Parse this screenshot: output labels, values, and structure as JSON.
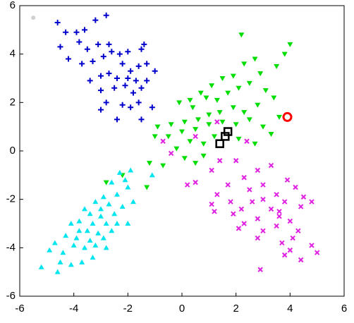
{
  "chart_data": {
    "type": "scatter",
    "xlim": [
      -6,
      6
    ],
    "ylim": [
      -6,
      6
    ],
    "xticks": [
      -6,
      -4,
      -2,
      0,
      2,
      4,
      6
    ],
    "yticks": [
      -6,
      -4,
      -2,
      0,
      2,
      4,
      6
    ],
    "series": [
      {
        "color": "#0000cc",
        "marker": "plus",
        "x": [
          -4.6,
          -4.3,
          -3.9,
          -3.6,
          -3.2,
          -2.8,
          -3.8,
          -3.5,
          -3.1,
          -2.7,
          -2.6,
          -2.9,
          -3.3,
          -3.7,
          -4.2,
          -4.5,
          -2.3,
          -2.0,
          -1.5,
          -1.3,
          -1.6,
          -1.9,
          -2.2,
          -2.4,
          -2.7,
          -3.0,
          -3.4,
          -2.5,
          -2.1,
          -1.8,
          -1.5,
          -1.3,
          -1.6,
          -1.9,
          -2.2,
          -2.8,
          -3.0,
          -2.4,
          -1.5,
          -1.1,
          -1.0,
          -3.0,
          -2.0,
          -1.7,
          -1.4
        ],
        "y": [
          5.3,
          4.9,
          4.9,
          5.0,
          5.4,
          5.6,
          4.5,
          4.2,
          4.4,
          4.4,
          4.1,
          3.9,
          3.7,
          3.6,
          3.8,
          4.3,
          4.0,
          4.1,
          4.2,
          3.6,
          3.5,
          3.3,
          3.6,
          3.0,
          3.2,
          3.1,
          2.9,
          2.6,
          2.7,
          2.4,
          2.6,
          2.9,
          2.0,
          1.8,
          1.9,
          2.0,
          1.7,
          1.3,
          1.3,
          1.8,
          3.3,
          2.5,
          3.0,
          2.9,
          4.4
        ]
      },
      {
        "color": "#00dd00",
        "marker": "tri-down",
        "x": [
          2.2,
          4.0,
          3.8,
          2.7,
          2.3,
          1.9,
          2.9,
          3.5,
          1.5,
          1.1,
          0.7,
          0.3,
          -0.1,
          0.4,
          0.9,
          1.3,
          1.7,
          2.1,
          2.5,
          3.1,
          3.4,
          2.8,
          2.3,
          1.9,
          1.4,
          1.0,
          0.6,
          0.1,
          -0.4,
          -0.9,
          -1.0,
          -0.5,
          0.0,
          0.5,
          1.0,
          1.5,
          2.0,
          2.5,
          3.0,
          3.3,
          2.1,
          0.3,
          -0.2,
          0.1,
          0.5,
          0.8,
          -0.7,
          -1.2,
          -2.8,
          -2.2,
          -1.3,
          0.8,
          1.2,
          2.7,
          3.6
        ],
        "y": [
          4.8,
          4.4,
          4.0,
          3.8,
          3.6,
          3.1,
          3.2,
          3.5,
          3.0,
          2.7,
          2.4,
          2.1,
          2.0,
          1.8,
          2.2,
          2.1,
          2.4,
          2.6,
          2.8,
          2.5,
          2.2,
          1.9,
          1.6,
          1.8,
          1.6,
          1.5,
          1.3,
          1.2,
          1.1,
          1.0,
          0.6,
          0.6,
          0.8,
          0.9,
          1.1,
          1.2,
          1.1,
          1.3,
          1.0,
          0.7,
          0.5,
          0.4,
          0.1,
          -0.3,
          -0.5,
          -0.2,
          -0.6,
          -0.5,
          -1.3,
          -1.0,
          -1.5,
          0.3,
          0.6,
          0.3,
          1.4
        ]
      },
      {
        "color": "#e020e0",
        "marker": "cross",
        "x": [
          -0.7,
          -0.4,
          0.5,
          1.3,
          2.4,
          2.0,
          1.1,
          2.3,
          2.8,
          3.3,
          3.0,
          2.5,
          1.7,
          1.3,
          1.8,
          2.2,
          2.6,
          3.0,
          3.5,
          3.9,
          4.2,
          3.8,
          4.5,
          4.4,
          4.8,
          1.2,
          1.9,
          2.3,
          2.8,
          3.3,
          3.6,
          3.6,
          4.0,
          4.3,
          3.5,
          3.0,
          2.1,
          2.8,
          3.7,
          4.1,
          4.0,
          3.8,
          5.0,
          4.8,
          1.1,
          0.5,
          0.2,
          2.9,
          4.4,
          1.4
        ],
        "y": [
          0.4,
          -0.1,
          0.6,
          1.2,
          0.4,
          -0.4,
          -0.8,
          -1.1,
          -0.8,
          -0.6,
          -1.4,
          -1.6,
          -1.4,
          -1.8,
          -2.1,
          -2.4,
          -2.1,
          -2.0,
          -1.8,
          -1.2,
          -1.5,
          -2.1,
          -1.9,
          -2.3,
          -2.1,
          -2.5,
          -2.6,
          -3.0,
          -2.8,
          -2.4,
          -2.5,
          -2.7,
          -2.9,
          -3.3,
          -3.1,
          -3.3,
          -3.2,
          -3.6,
          -3.8,
          -3.6,
          -4.1,
          -4.3,
          -4.2,
          -3.9,
          -2.2,
          -1.3,
          -1.4,
          -4.9,
          -4.5,
          -0.4
        ]
      },
      {
        "color": "#00e5ee",
        "marker": "tri-up",
        "x": [
          -1.9,
          -2.3,
          -2.1,
          -2.6,
          -2.0,
          -2.4,
          -2.9,
          -3.2,
          -2.7,
          -2.2,
          -3.6,
          -3.4,
          -3.0,
          -2.5,
          -2.8,
          -3.3,
          -3.8,
          -4.1,
          -3.5,
          -3.1,
          -2.6,
          -2.9,
          -3.4,
          -3.9,
          -4.3,
          -4.0,
          -3.6,
          -3.2,
          -2.8,
          -4.4,
          -4.7,
          -4.9,
          -4.5,
          -5.2,
          -4.6,
          -4.1,
          -3.7,
          -3.3,
          -2.0,
          -1.8,
          -1.1,
          -3.0,
          -3.8,
          -2.4
        ],
        "y": [
          -0.8,
          -0.9,
          -1.2,
          -1.3,
          -1.5,
          -1.8,
          -1.9,
          -2.1,
          -2.2,
          -2.3,
          -2.4,
          -2.6,
          -2.7,
          -2.6,
          -3.0,
          -3.0,
          -2.9,
          -3.0,
          -3.3,
          -3.4,
          -3.3,
          -3.6,
          -3.7,
          -3.6,
          -3.5,
          -3.9,
          -4.0,
          -3.9,
          -4.0,
          -4.2,
          -3.8,
          -4.1,
          -4.6,
          -4.8,
          -5.0,
          -4.7,
          -4.6,
          -4.4,
          -3.0,
          -2.1,
          -1.0,
          -2.4,
          -3.3,
          -3.0
        ]
      },
      {
        "color": "#d0d0d0",
        "marker": "dot",
        "x": [
          -5.5
        ],
        "y": [
          5.5
        ]
      },
      {
        "color": "#ff0000",
        "marker": "circle",
        "x": [
          3.9
        ],
        "y": [
          1.4
        ]
      },
      {
        "color": "#000000",
        "marker": "square",
        "x": [
          1.4,
          1.6,
          1.7
        ],
        "y": [
          0.3,
          0.6,
          0.8
        ]
      }
    ]
  }
}
